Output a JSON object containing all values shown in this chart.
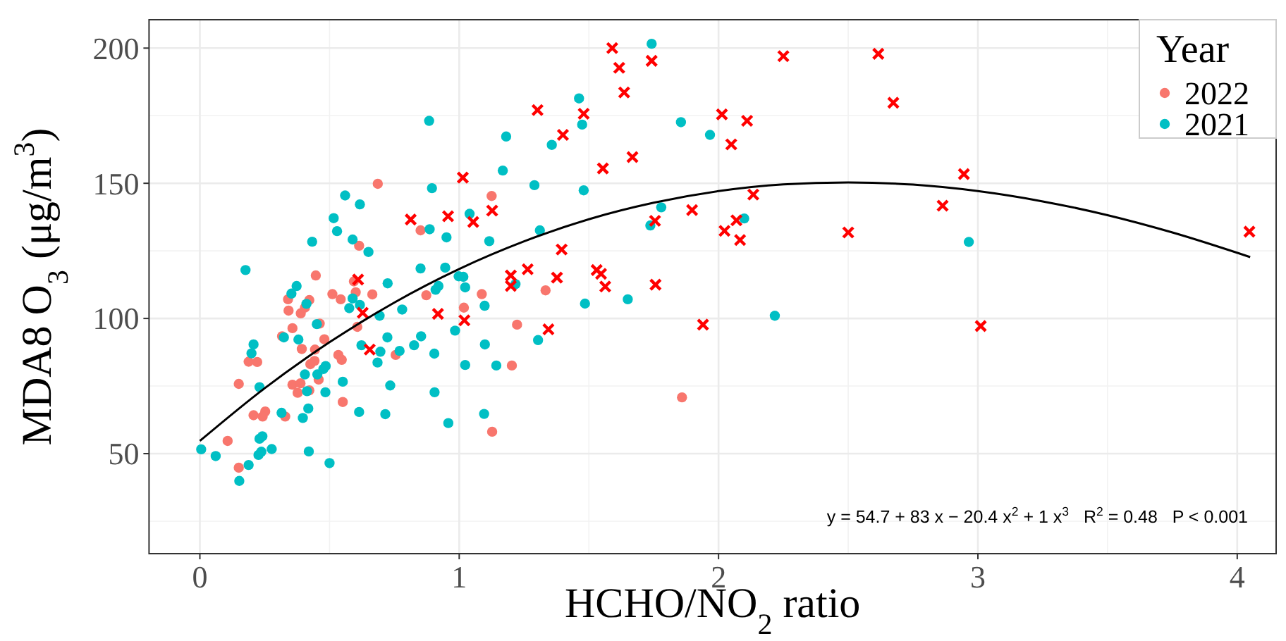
{
  "chart_data": {
    "type": "scatter",
    "xlabel": "HCHO/NO$_{2}$ ratio",
    "ylabel": "MDA8 O$_{3}$ (μg/m$^{3}$)",
    "legend_title": "Year",
    "legend": "top right",
    "grid": true,
    "xlim": [
      -0.196,
      4.15
    ],
    "xticks": [
      0,
      1,
      2,
      3,
      4
    ],
    "ylim": [
      13,
      210.5
    ],
    "yticks": [
      50,
      100,
      150,
      200
    ],
    "annotations": [
      "y = 54.7 + 83 x − 20.4 x$^{2}$ + 1 x$^{3}$   R$^{2}$ = 0.48   P < 0.001"
    ],
    "series": [
      {
        "name": "2022",
        "color": "#f8766d",
        "marker": "circle",
        "x": [
          0.107,
          0.15,
          0.15,
          0.188,
          0.221,
          0.207,
          0.252,
          0.242,
          0.329,
          0.317,
          0.342,
          0.34,
          0.357,
          0.389,
          0.405,
          0.422,
          0.447,
          0.462,
          0.393,
          0.444,
          0.426,
          0.442,
          0.48,
          0.357,
          0.388,
          0.377,
          0.458,
          0.422,
          0.534,
          0.547,
          0.551,
          0.511,
          0.543,
          0.594,
          0.686,
          0.851,
          1.125,
          0.614,
          0.601,
          0.665,
          0.873,
          1.087,
          1.018,
          0.607,
          1.333,
          1.223,
          0.755,
          1.203,
          1.127,
          1.859
        ],
        "values": [
          54.7,
          44.8,
          75.8,
          84.0,
          83.9,
          64.2,
          65.6,
          63.7,
          63.7,
          93.4,
          102.9,
          107.1,
          96.4,
          101.9,
          104.0,
          106.8,
          115.9,
          98.1,
          88.7,
          88.5,
          83.1,
          84.3,
          92.3,
          75.5,
          76.0,
          72.5,
          77.4,
          73.4,
          86.5,
          84.7,
          69.1,
          109.0,
          107.1,
          113.7,
          149.8,
          132.6,
          145.3,
          126.9,
          109.7,
          108.9,
          108.6,
          109.0,
          104.0,
          96.9,
          110.4,
          97.7,
          86.5,
          82.6,
          58.1,
          70.8
        ]
      },
      {
        "name": "2021",
        "color": "#00bfc4",
        "marker": "circle",
        "x": [
          0.005,
          0.061,
          0.152,
          0.188,
          0.176,
          0.207,
          0.199,
          0.23,
          0.226,
          0.237,
          0.241,
          0.23,
          0.277,
          0.315,
          0.397,
          0.418,
          0.42,
          0.413,
          0.5,
          0.484,
          0.551,
          0.405,
          0.453,
          0.476,
          0.485,
          0.324,
          0.38,
          0.451,
          0.411,
          0.353,
          0.373,
          0.576,
          0.589,
          0.56,
          0.516,
          0.529,
          0.433,
          0.884,
          0.617,
          0.65,
          0.895,
          0.886,
          0.951,
          0.851,
          0.946,
          0.724,
          0.92,
          0.909,
          0.998,
          1.016,
          1.023,
          0.78,
          0.693,
          0.589,
          0.617,
          0.984,
          1.098,
          0.623,
          0.696,
          0.685,
          0.723,
          0.77,
          0.826,
          0.853,
          0.904,
          0.734,
          0.905,
          0.958,
          0.614,
          0.715,
          1.023,
          1.099,
          1.143,
          1.096,
          1.304,
          1.217,
          1.116,
          1.04,
          1.168,
          1.181,
          1.29,
          1.311,
          1.357,
          1.742,
          1.462,
          1.474,
          1.855,
          1.967,
          1.48,
          1.779,
          1.737,
          2.099,
          1.485,
          1.65,
          2.217,
          2.965
        ],
        "values": [
          51.6,
          49.1,
          39.9,
          45.8,
          117.9,
          90.4,
          87.1,
          74.6,
          49.5,
          50.7,
          56.4,
          55.5,
          51.7,
          65.1,
          63.2,
          66.7,
          50.8,
          73.1,
          46.5,
          72.7,
          76.6,
          79.3,
          79.3,
          81.3,
          82.4,
          93.0,
          92.2,
          97.9,
          105.4,
          109.2,
          112.0,
          103.8,
          129.2,
          145.5,
          137.1,
          132.3,
          128.4,
          173.1,
          142.2,
          124.6,
          148.2,
          133.0,
          130.0,
          118.5,
          118.8,
          113.0,
          112.0,
          110.6,
          115.6,
          115.4,
          111.5,
          103.3,
          101.0,
          107.4,
          105.0,
          95.5,
          104.7,
          90.1,
          87.7,
          83.7,
          93.0,
          88.0,
          90.1,
          93.4,
          87.0,
          75.2,
          72.7,
          61.3,
          65.4,
          64.6,
          82.8,
          90.4,
          82.6,
          64.7,
          92.0,
          112.7,
          128.6,
          138.7,
          154.7,
          167.3,
          149.3,
          132.6,
          164.2,
          201.6,
          181.4,
          171.7,
          172.6,
          167.9,
          147.4,
          141.1,
          134.4,
          137.0,
          105.5,
          107.1,
          101.0,
          128.3
        ]
      },
      {
        "color": "#ff0000",
        "marker": "cross",
        "x": [
          1.302,
          1.4,
          1.014,
          0.813,
          0.957,
          1.054,
          1.127,
          1.395,
          1.199,
          1.264,
          1.377,
          1.199,
          0.61,
          0.628,
          0.918,
          1.02,
          1.344,
          0.655,
          1.59,
          1.617,
          1.742,
          1.636,
          1.48,
          1.554,
          1.668,
          2.25,
          2.616,
          2.674,
          2.013,
          2.11,
          2.049,
          2.134,
          1.898,
          1.755,
          2.023,
          2.069,
          2.083,
          2.5,
          1.53,
          1.547,
          1.563,
          1.757,
          1.94,
          2.946,
          2.864,
          3.011,
          4.047
        ],
        "values": [
          177.1,
          167.9,
          152.1,
          136.6,
          137.8,
          135.7,
          139.9,
          125.5,
          115.9,
          118.2,
          115.1,
          112.0,
          114.4,
          102.1,
          101.7,
          99.3,
          96.0,
          88.5,
          200,
          192.7,
          195.3,
          183.6,
          175.7,
          155.5,
          159.7,
          197,
          197.9,
          179.8,
          175.5,
          173.1,
          164.4,
          145.8,
          140.1,
          136.1,
          132.4,
          136.3,
          129.0,
          131.8,
          117.9,
          116.5,
          111.8,
          112.5,
          97.7,
          153.4,
          141.7,
          97.2,
          132.1
        ]
      },
      {
        "type": "line",
        "color": "#000000",
        "marker": "none",
        "x": [
          0,
          0.25,
          0.5,
          0.75,
          1,
          1.25,
          1.5,
          1.75,
          2,
          2.25,
          2.5,
          2.75,
          3,
          3.25,
          3.5,
          3.75,
          4.05
        ],
        "values": [
          54.7,
          74.2,
          91.2,
          105.9,
          118.3,
          128.5,
          136.7,
          142.8,
          147.1,
          149.6,
          150.3,
          149.5,
          147.1,
          143.3,
          138.2,
          131.8,
          122.7
        ]
      }
    ]
  }
}
